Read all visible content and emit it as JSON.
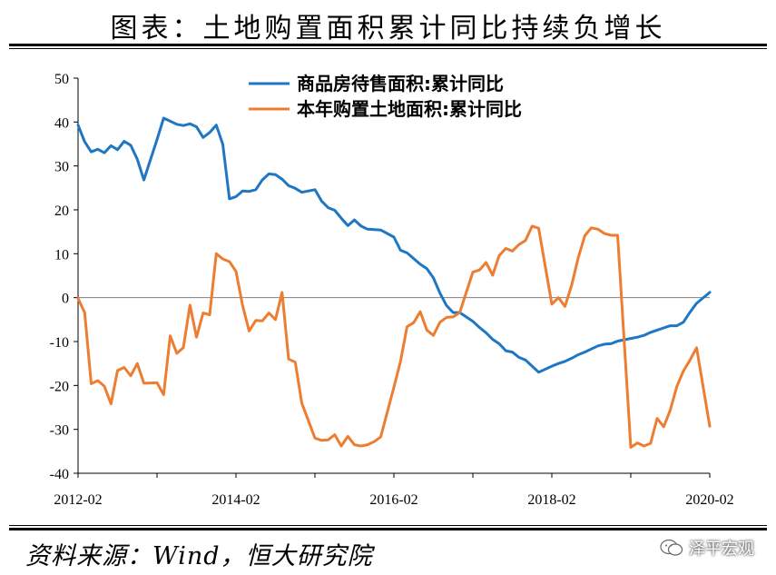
{
  "header": {
    "title": "图表：土地购置面积累计同比持续负增长"
  },
  "footer": {
    "source": "资料来源：Wind，恒大研究院",
    "watermark": "泽平宏观"
  },
  "chart_data": {
    "type": "line",
    "ylim": [
      -40,
      50
    ],
    "yticks": [
      50,
      40,
      30,
      20,
      10,
      0,
      -10,
      -20,
      -30,
      -40
    ],
    "xlim": [
      "2012-02",
      "2020-02"
    ],
    "xticks": [
      "2012-02",
      "2014-02",
      "2016-02",
      "2018-02",
      "2020-02"
    ],
    "legend_position": "top-center",
    "grid": false,
    "colors": {
      "series1": "#1f77c4",
      "series2": "#ed7d31",
      "zero_line": "#808080"
    },
    "series": [
      {
        "name": "商品房待售面积:累计同比",
        "points": [
          [
            "2012-02",
            39.3
          ],
          [
            "2012-03",
            35.5
          ],
          [
            "2012-04",
            33.2
          ],
          [
            "2012-05",
            33.8
          ],
          [
            "2012-06",
            33.0
          ],
          [
            "2012-07",
            34.6
          ],
          [
            "2012-08",
            33.7
          ],
          [
            "2012-09",
            35.6
          ],
          [
            "2012-10",
            34.7
          ],
          [
            "2012-11",
            31.5
          ],
          [
            "2012-12",
            26.8
          ],
          [
            "2013-02",
            36.0
          ],
          [
            "2013-03",
            40.9
          ],
          [
            "2013-04",
            40.2
          ],
          [
            "2013-05",
            39.5
          ],
          [
            "2013-06",
            39.2
          ],
          [
            "2013-07",
            39.6
          ],
          [
            "2013-08",
            38.9
          ],
          [
            "2013-09",
            36.5
          ],
          [
            "2013-10",
            37.6
          ],
          [
            "2013-11",
            39.3
          ],
          [
            "2013-12",
            34.9
          ],
          [
            "2014-01",
            22.5
          ],
          [
            "2014-02",
            23.0
          ],
          [
            "2014-03",
            24.3
          ],
          [
            "2014-04",
            24.2
          ],
          [
            "2014-05",
            24.6
          ],
          [
            "2014-06",
            26.8
          ],
          [
            "2014-07",
            28.2
          ],
          [
            "2014-08",
            28.0
          ],
          [
            "2014-09",
            27.0
          ],
          [
            "2014-10",
            25.5
          ],
          [
            "2014-11",
            24.9
          ],
          [
            "2014-12",
            24.0
          ],
          [
            "2015-02",
            24.6
          ],
          [
            "2015-03",
            22.0
          ],
          [
            "2015-04",
            20.5
          ],
          [
            "2015-05",
            19.9
          ],
          [
            "2015-06",
            18.1
          ],
          [
            "2015-07",
            16.4
          ],
          [
            "2015-08",
            17.7
          ],
          [
            "2015-09",
            16.3
          ],
          [
            "2015-10",
            15.6
          ],
          [
            "2015-11",
            15.5
          ],
          [
            "2015-12",
            15.4
          ],
          [
            "2016-02",
            13.8
          ],
          [
            "2016-03",
            10.8
          ],
          [
            "2016-04",
            10.2
          ],
          [
            "2016-05",
            8.9
          ],
          [
            "2016-06",
            7.6
          ],
          [
            "2016-07",
            6.6
          ],
          [
            "2016-08",
            4.5
          ],
          [
            "2016-09",
            1.0
          ],
          [
            "2016-10",
            -1.8
          ],
          [
            "2016-11",
            -3.4
          ],
          [
            "2016-12",
            -3.4
          ],
          [
            "2017-02",
            -5.4
          ],
          [
            "2017-03",
            -6.8
          ],
          [
            "2017-04",
            -8.0
          ],
          [
            "2017-05",
            -9.5
          ],
          [
            "2017-06",
            -10.5
          ],
          [
            "2017-07",
            -12.1
          ],
          [
            "2017-08",
            -12.4
          ],
          [
            "2017-09",
            -13.6
          ],
          [
            "2017-10",
            -14.2
          ],
          [
            "2017-11",
            -15.6
          ],
          [
            "2017-12",
            -17.0
          ],
          [
            "2018-02",
            -15.6
          ],
          [
            "2018-03",
            -15.0
          ],
          [
            "2018-04",
            -14.5
          ],
          [
            "2018-05",
            -13.8
          ],
          [
            "2018-06",
            -13.0
          ],
          [
            "2018-07",
            -12.4
          ],
          [
            "2018-08",
            -11.7
          ],
          [
            "2018-09",
            -11.0
          ],
          [
            "2018-10",
            -10.6
          ],
          [
            "2018-11",
            -10.5
          ],
          [
            "2018-12",
            -9.9
          ],
          [
            "2019-02",
            -9.3
          ],
          [
            "2019-03",
            -9.0
          ],
          [
            "2019-04",
            -8.6
          ],
          [
            "2019-05",
            -7.9
          ],
          [
            "2019-06",
            -7.4
          ],
          [
            "2019-07",
            -6.9
          ],
          [
            "2019-08",
            -6.4
          ],
          [
            "2019-09",
            -6.4
          ],
          [
            "2019-10",
            -5.6
          ],
          [
            "2019-11",
            -3.3
          ],
          [
            "2019-12",
            -1.3
          ],
          [
            "2020-02",
            1.2
          ]
        ]
      },
      {
        "name": "本年购置土地面积:累计同比",
        "points": [
          [
            "2012-02",
            -0.2
          ],
          [
            "2012-03",
            -3.4
          ],
          [
            "2012-04",
            -19.6
          ],
          [
            "2012-05",
            -18.9
          ],
          [
            "2012-06",
            -20.2
          ],
          [
            "2012-07",
            -24.2
          ],
          [
            "2012-08",
            -16.6
          ],
          [
            "2012-09",
            -15.9
          ],
          [
            "2012-10",
            -17.8
          ],
          [
            "2012-11",
            -15.0
          ],
          [
            "2012-12",
            -19.5
          ],
          [
            "2013-02",
            -19.4
          ],
          [
            "2013-03",
            -22.1
          ],
          [
            "2013-04",
            -8.7
          ],
          [
            "2013-05",
            -12.7
          ],
          [
            "2013-06",
            -11.4
          ],
          [
            "2013-07",
            -1.7
          ],
          [
            "2013-08",
            -9.0
          ],
          [
            "2013-09",
            -3.5
          ],
          [
            "2013-10",
            -3.9
          ],
          [
            "2013-11",
            10.0
          ],
          [
            "2013-12",
            8.8
          ],
          [
            "2014-01",
            8.2
          ],
          [
            "2014-02",
            6.0
          ],
          [
            "2014-03",
            -1.8
          ],
          [
            "2014-04",
            -7.6
          ],
          [
            "2014-05",
            -5.2
          ],
          [
            "2014-06",
            -5.3
          ],
          [
            "2014-07",
            -3.5
          ],
          [
            "2014-08",
            -5.0
          ],
          [
            "2014-09",
            1.2
          ],
          [
            "2014-10",
            -14.0
          ],
          [
            "2014-11",
            -14.7
          ],
          [
            "2014-12",
            -24.0
          ],
          [
            "2015-02",
            -32.0
          ],
          [
            "2015-03",
            -32.5
          ],
          [
            "2015-04",
            -32.4
          ],
          [
            "2015-05",
            -31.2
          ],
          [
            "2015-06",
            -33.8
          ],
          [
            "2015-07",
            -31.6
          ],
          [
            "2015-08",
            -33.5
          ],
          [
            "2015-09",
            -33.8
          ],
          [
            "2015-10",
            -33.5
          ],
          [
            "2015-11",
            -32.8
          ],
          [
            "2015-12",
            -31.7
          ],
          [
            "2016-02",
            -20.4
          ],
          [
            "2016-03",
            -14.5
          ],
          [
            "2016-04",
            -6.6
          ],
          [
            "2016-05",
            -5.7
          ],
          [
            "2016-06",
            -3.2
          ],
          [
            "2016-07",
            -7.4
          ],
          [
            "2016-08",
            -8.6
          ],
          [
            "2016-09",
            -5.6
          ],
          [
            "2016-10",
            -4.5
          ],
          [
            "2016-11",
            -4.4
          ],
          [
            "2016-12",
            -3.4
          ],
          [
            "2017-02",
            5.8
          ],
          [
            "2017-03",
            6.3
          ],
          [
            "2017-04",
            8.0
          ],
          [
            "2017-05",
            5.1
          ],
          [
            "2017-06",
            9.6
          ],
          [
            "2017-07",
            11.2
          ],
          [
            "2017-08",
            10.6
          ],
          [
            "2017-09",
            12.1
          ],
          [
            "2017-10",
            13.0
          ],
          [
            "2017-11",
            16.3
          ],
          [
            "2017-12",
            15.8
          ],
          [
            "2018-02",
            -1.5
          ],
          [
            "2018-03",
            0.0
          ],
          [
            "2018-04",
            -2.0
          ],
          [
            "2018-05",
            2.8
          ],
          [
            "2018-06",
            9.0
          ],
          [
            "2018-07",
            14.1
          ],
          [
            "2018-08",
            15.9
          ],
          [
            "2018-09",
            15.6
          ],
          [
            "2018-10",
            14.6
          ],
          [
            "2018-11",
            14.2
          ],
          [
            "2018-12",
            14.2
          ],
          [
            "2019-02",
            -34.1
          ],
          [
            "2019-03",
            -33.1
          ],
          [
            "2019-04",
            -33.8
          ],
          [
            "2019-05",
            -33.2
          ],
          [
            "2019-06",
            -27.5
          ],
          [
            "2019-07",
            -29.4
          ],
          [
            "2019-08",
            -25.6
          ],
          [
            "2019-09",
            -20.2
          ],
          [
            "2019-10",
            -16.7
          ],
          [
            "2019-11",
            -14.2
          ],
          [
            "2019-12",
            -11.4
          ],
          [
            "2020-02",
            -29.3
          ]
        ]
      }
    ]
  }
}
